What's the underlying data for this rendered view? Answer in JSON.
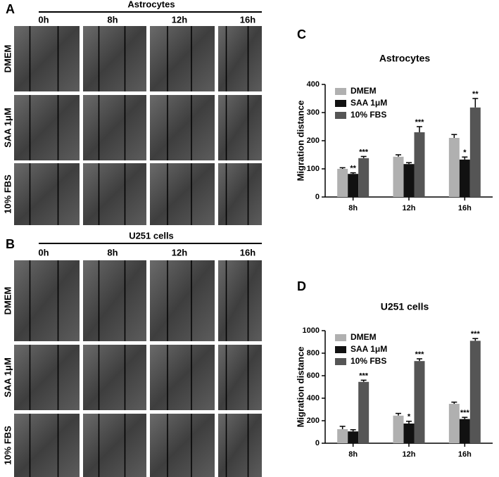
{
  "panel_a": {
    "letter": "A",
    "title": "Astrocytes",
    "times": [
      "0h",
      "8h",
      "12h",
      "16h"
    ],
    "conditions": [
      "DMEM",
      "SAA 1μM",
      "10% FBS"
    ]
  },
  "panel_b": {
    "letter": "B",
    "title": "U251 cells",
    "times": [
      "0h",
      "8h",
      "12h",
      "16h"
    ],
    "conditions": [
      "DMEM",
      "SAA 1μM",
      "10% FBS"
    ]
  },
  "chart_data": [
    {
      "type": "bar",
      "letter": "C",
      "title": "Astrocytes",
      "y_label": "Migration distance",
      "categories": [
        "8h",
        "12h",
        "16h"
      ],
      "ylim": [
        0,
        400
      ],
      "yticks": [
        0,
        100,
        200,
        300,
        400
      ],
      "series": [
        {
          "name": "DMEM",
          "color": "#b0b0b0",
          "values": [
            100,
            143,
            210
          ],
          "errors": [
            4,
            7,
            12
          ]
        },
        {
          "name": "SAA 1μM",
          "color": "#111111",
          "values": [
            82,
            117,
            133
          ],
          "errors": [
            4,
            5,
            9
          ],
          "stars": [
            "**",
            null,
            "*"
          ]
        },
        {
          "name": "10% FBS",
          "color": "#555555",
          "values": [
            138,
            230,
            318
          ],
          "errors": [
            6,
            20,
            32
          ],
          "stars": [
            "***",
            "***",
            "**"
          ]
        }
      ]
    },
    {
      "type": "bar",
      "letter": "D",
      "title": "U251 cells",
      "y_label": "Migration distance",
      "categories": [
        "8h",
        "12h",
        "16h"
      ],
      "ylim": [
        0,
        1000
      ],
      "yticks": [
        0,
        200,
        400,
        600,
        800,
        1000
      ],
      "series": [
        {
          "name": "DMEM",
          "color": "#b0b0b0",
          "values": [
            125,
            245,
            350
          ],
          "errors": [
            25,
            20,
            15
          ]
        },
        {
          "name": "SAA 1μM",
          "color": "#111111",
          "values": [
            105,
            175,
            215
          ],
          "errors": [
            15,
            20,
            15
          ],
          "stars": [
            null,
            "*",
            "***"
          ]
        },
        {
          "name": "10% FBS",
          "color": "#555555",
          "values": [
            545,
            730,
            910
          ],
          "errors": [
            15,
            20,
            20
          ],
          "stars": [
            "***",
            "***",
            "***"
          ]
        }
      ]
    }
  ]
}
